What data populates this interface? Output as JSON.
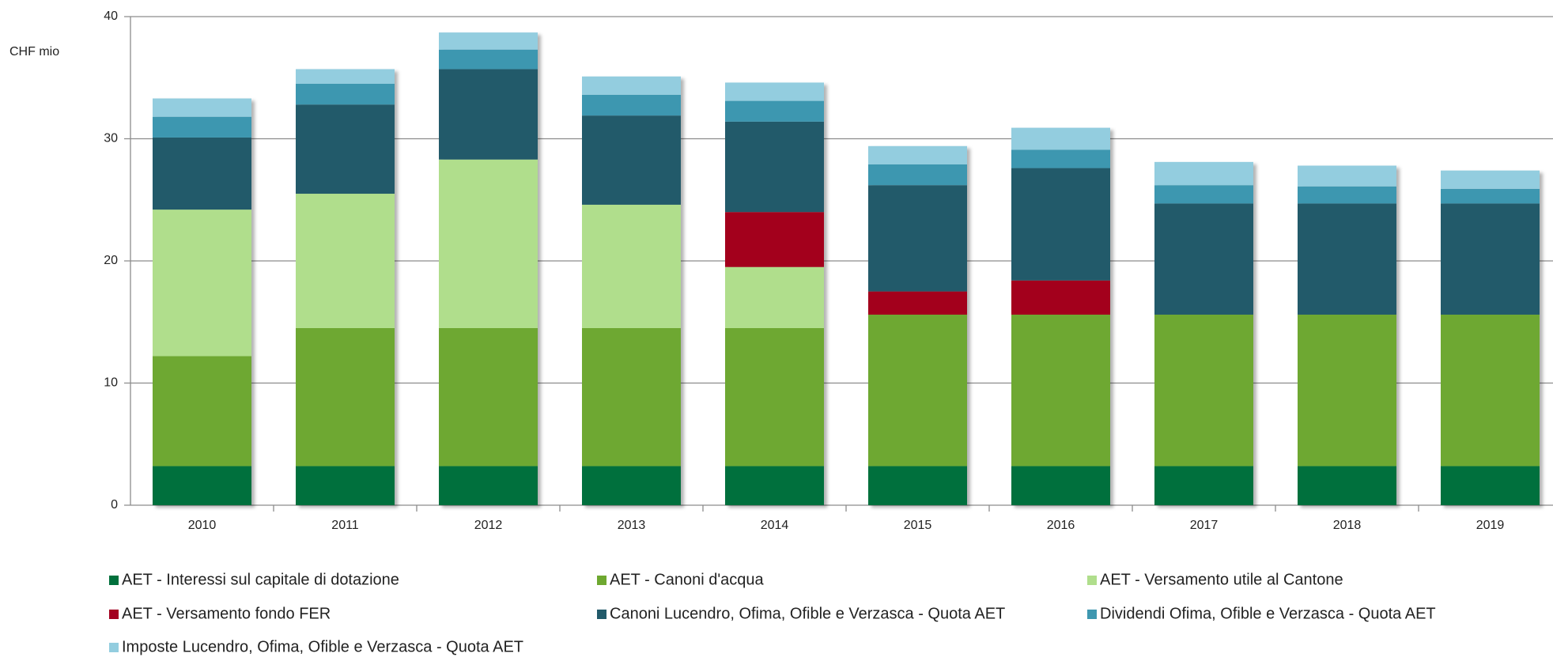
{
  "chart_data": {
    "type": "stacked_bar",
    "ylabel": "CHF mio",
    "categories": [
      "2010",
      "2011",
      "2012",
      "2013",
      "2014",
      "2015",
      "2016",
      "2017",
      "2018",
      "2019"
    ],
    "series": [
      {
        "name": "AET - Interessi sul capitale di dotazione",
        "color": "#00703c",
        "values": [
          3.2,
          3.2,
          3.2,
          3.2,
          3.2,
          3.2,
          3.2,
          3.2,
          3.2,
          3.2
        ]
      },
      {
        "name": "AET - Canoni d'acqua",
        "color": "#6ea830",
        "values": [
          9.0,
          11.3,
          11.3,
          11.3,
          11.3,
          12.4,
          12.4,
          12.4,
          12.4,
          12.4
        ]
      },
      {
        "name": "AET - Versamento utile al Cantone",
        "color": "#b0de8c",
        "values": [
          12.0,
          11.0,
          13.8,
          10.1,
          5.0,
          0,
          0,
          0,
          0,
          0
        ]
      },
      {
        "name": "AET - Versamento fondo FER",
        "color": "#a3001f",
        "values": [
          0,
          0,
          0,
          0,
          4.5,
          1.9,
          2.8,
          0,
          0,
          0
        ]
      },
      {
        "name": "Canoni Lucendro, Ofima, Ofible e Verzasca - Quota AET",
        "color": "#215a6a",
        "values": [
          5.9,
          7.3,
          7.4,
          7.3,
          7.4,
          8.7,
          9.2,
          9.1,
          9.1,
          9.1
        ]
      },
      {
        "name": "Dividendi Ofima, Ofible e Verzasca - Quota AET",
        "color": "#3e97b0",
        "values": [
          1.7,
          1.7,
          1.6,
          1.7,
          1.7,
          1.7,
          1.5,
          1.5,
          1.4,
          1.2
        ]
      },
      {
        "name": "Imposte Lucendro, Ofima, Ofible e Verzasca - Quota AET",
        "color": "#93cddf",
        "values": [
          1.5,
          1.2,
          1.4,
          1.5,
          1.5,
          1.5,
          1.8,
          1.9,
          1.7,
          1.5
        ]
      }
    ],
    "ylim": [
      0,
      40
    ],
    "yticks": [
      0,
      10,
      20,
      30,
      40
    ],
    "grid": true
  }
}
